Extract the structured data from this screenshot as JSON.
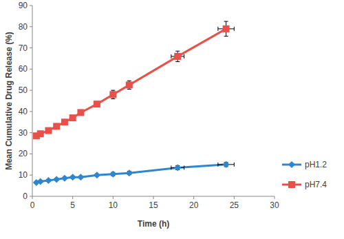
{
  "chart_data": {
    "type": "line",
    "x_label": "Time (h)",
    "y_label": "Mean Cumulative Drug Release (%)",
    "x": [
      0.5,
      1,
      2,
      3,
      4,
      5,
      6,
      8,
      10,
      12,
      18,
      24
    ],
    "series": [
      {
        "name": "pH1.2",
        "color": "#2e86cf",
        "marker": "diamond",
        "values": [
          6.5,
          7,
          7.5,
          8,
          8.5,
          9,
          9,
          10,
          10.5,
          11,
          13.5,
          15
        ],
        "errors": [
          0.5,
          0.5,
          0.5,
          0.5,
          0.5,
          0.5,
          0.5,
          0.5,
          0.8,
          0.8,
          1,
          1
        ],
        "x_errors": [
          0,
          0,
          0,
          0,
          0,
          0,
          0,
          0,
          0,
          0,
          0.8,
          1
        ]
      },
      {
        "name": "pH7.4",
        "color": "#e8504a",
        "marker": "square",
        "values": [
          28.5,
          29.5,
          31,
          33,
          35,
          37,
          39.5,
          43.5,
          48,
          52.5,
          66,
          79
        ],
        "errors": [
          1,
          1,
          1,
          1,
          1,
          1,
          1,
          1,
          2,
          2,
          2.5,
          3.5
        ],
        "x_errors": [
          0,
          0,
          0,
          0,
          0,
          0,
          0,
          0,
          0.3,
          0.3,
          0.8,
          1
        ]
      }
    ],
    "xlim": [
      0,
      30
    ],
    "xticks": [
      0,
      5,
      10,
      15,
      20,
      25,
      30
    ],
    "ylim": [
      0,
      90
    ],
    "yticks": [
      0,
      10,
      20,
      30,
      40,
      50,
      60,
      70,
      80,
      90
    ],
    "grid": false,
    "legend": "right"
  }
}
